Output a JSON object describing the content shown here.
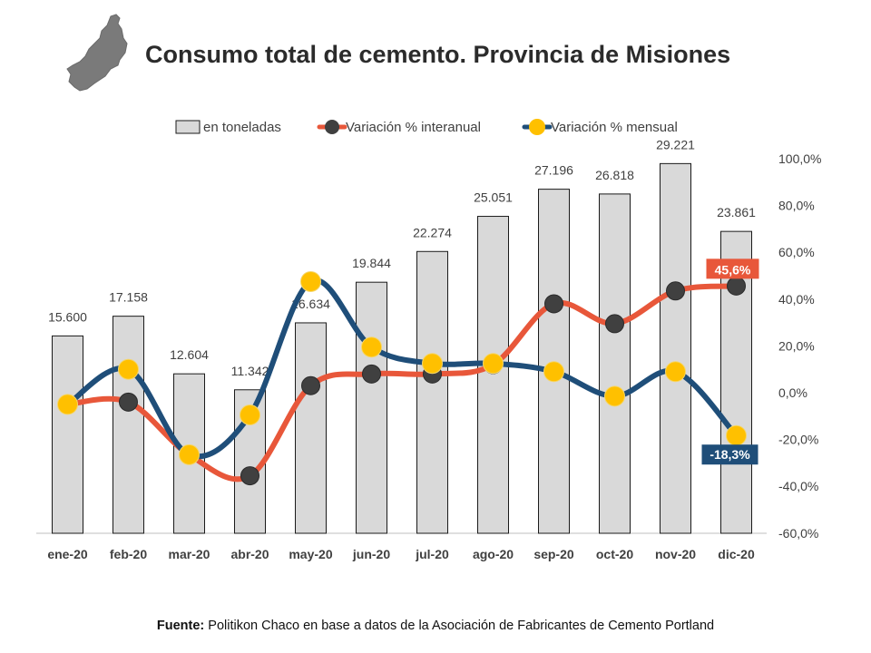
{
  "title": "Consumo total de cemento. Provincia de Misiones",
  "source": {
    "label": "Fuente:",
    "text": "Politikon Chaco en base a datos de la Asociación de Fabricantes de Cemento Portland"
  },
  "chart_data": {
    "type": "bar",
    "categories": [
      "ene-20",
      "feb-20",
      "mar-20",
      "abr-20",
      "may-20",
      "jun-20",
      "jul-20",
      "ago-20",
      "sep-20",
      "oct-20",
      "nov-20",
      "dic-20"
    ],
    "bar_series": {
      "name": "en toneladas",
      "values": [
        15600,
        17158,
        12604,
        11342,
        16634,
        19844,
        22274,
        25051,
        27196,
        26818,
        29221,
        23861
      ],
      "labels": [
        "15.600",
        "17.158",
        "12.604",
        "11.342",
        "16.634",
        "19.844",
        "22.274",
        "25.051",
        "27.196",
        "26.818",
        "29.221",
        "23.861"
      ],
      "color": "#d9d9d9"
    },
    "line_series": [
      {
        "name": "Variación % interanual",
        "values": [
          -5.0,
          -4.0,
          -26.5,
          -35.5,
          3.0,
          8.0,
          8.0,
          12.0,
          38.0,
          29.5,
          43.5,
          45.6
        ],
        "line_color": "#e8573a",
        "marker_color": "#404040",
        "end_label": "45,6%"
      },
      {
        "name": "Variación % mensual",
        "values": [
          -5.0,
          10.0,
          -26.5,
          -9.5,
          47.5,
          19.5,
          12.5,
          12.5,
          9.0,
          -1.5,
          9.0,
          -18.3
        ],
        "line_color": "#1f4e79",
        "marker_color": "#ffc000",
        "end_label": "-18,3%"
      }
    ],
    "y2_ticks": [
      "100,0%",
      "80,0%",
      "60,0%",
      "40,0%",
      "20,0%",
      "0,0%",
      "-20,0%",
      "-40,0%",
      "-60,0%"
    ],
    "y2_range": [
      -60,
      100
    ],
    "legend_position": "top",
    "grid": false
  }
}
